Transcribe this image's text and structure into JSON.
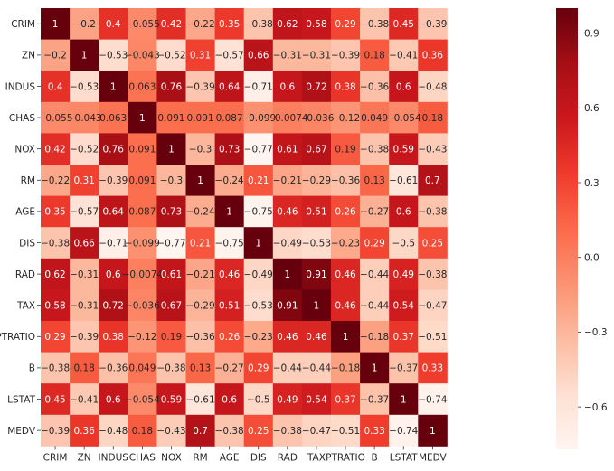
{
  "chart_data": {
    "type": "heatmap",
    "title": "",
    "xlabel": "",
    "ylabel": "",
    "labels": [
      "CRIM",
      "ZN",
      "INDUS",
      "CHAS",
      "NOX",
      "RM",
      "AGE",
      "DIS",
      "RAD",
      "TAX",
      "PTRATIO",
      "B",
      "LSTAT",
      "MEDV"
    ],
    "display_row_labels": [
      "CRIM",
      "ZN",
      "INDUS",
      "CHAS",
      "NOX",
      "RM",
      "AGE",
      "DIS",
      "RAD",
      "TAX",
      "PTRATIO",
      "B",
      "LSTAT",
      "MEDV"
    ],
    "values": [
      [
        1,
        -0.2,
        0.4,
        -0.055,
        0.42,
        -0.22,
        0.35,
        -0.38,
        0.62,
        0.58,
        0.29,
        -0.38,
        0.45,
        -0.39
      ],
      [
        -0.2,
        1,
        -0.53,
        -0.043,
        -0.52,
        0.31,
        -0.57,
        0.66,
        -0.31,
        -0.31,
        -0.39,
        0.18,
        -0.41,
        0.36
      ],
      [
        0.4,
        -0.53,
        1,
        0.063,
        0.76,
        -0.39,
        0.64,
        -0.71,
        0.6,
        0.72,
        0.38,
        -0.36,
        0.6,
        -0.48
      ],
      [
        -0.055,
        -0.043,
        0.063,
        1,
        0.091,
        0.091,
        0.087,
        -0.099,
        -0.0074,
        -0.036,
        -0.12,
        0.049,
        -0.054,
        0.18
      ],
      [
        0.42,
        -0.52,
        0.76,
        0.091,
        1,
        -0.3,
        0.73,
        -0.77,
        0.61,
        0.67,
        0.19,
        -0.38,
        0.59,
        -0.43
      ],
      [
        -0.22,
        0.31,
        -0.39,
        0.091,
        -0.3,
        1,
        -0.24,
        0.21,
        -0.21,
        -0.29,
        -0.36,
        0.13,
        -0.61,
        0.7
      ],
      [
        0.35,
        -0.57,
        0.64,
        0.087,
        0.73,
        -0.24,
        1,
        -0.75,
        0.46,
        0.51,
        0.26,
        -0.27,
        0.6,
        -0.38
      ],
      [
        -0.38,
        0.66,
        -0.71,
        -0.099,
        -0.77,
        0.21,
        -0.75,
        1,
        -0.49,
        -0.53,
        -0.23,
        0.29,
        -0.5,
        0.25
      ],
      [
        0.62,
        -0.31,
        0.6,
        -0.0074,
        0.61,
        -0.21,
        0.46,
        -0.49,
        1,
        0.91,
        0.46,
        -0.44,
        0.49,
        -0.38
      ],
      [
        0.58,
        -0.31,
        0.72,
        -0.036,
        0.67,
        -0.29,
        0.51,
        -0.53,
        0.91,
        1,
        0.46,
        -0.44,
        0.54,
        -0.47
      ],
      [
        0.29,
        -0.39,
        0.38,
        -0.12,
        0.19,
        -0.36,
        0.26,
        -0.23,
        0.46,
        0.46,
        1,
        -0.18,
        0.37,
        -0.51
      ],
      [
        -0.38,
        0.18,
        -0.36,
        0.049,
        -0.38,
        0.13,
        -0.27,
        0.29,
        -0.44,
        -0.44,
        -0.18,
        1,
        -0.37,
        0.33
      ],
      [
        0.45,
        -0.41,
        0.6,
        -0.054,
        0.59,
        -0.61,
        0.6,
        -0.5,
        0.49,
        0.54,
        0.37,
        -0.37,
        1,
        -0.74
      ],
      [
        -0.39,
        0.36,
        -0.48,
        0.18,
        -0.43,
        0.7,
        -0.38,
        0.25,
        -0.38,
        -0.47,
        -0.51,
        0.33,
        -0.74,
        1
      ]
    ],
    "colormap": "Reds",
    "vmin": -0.77,
    "vmax": 1,
    "colorbar_ticks": [
      0.9,
      0.6,
      0.3,
      0.0,
      -0.3,
      -0.6
    ],
    "colorbar_tick_labels": [
      "0.9",
      "0.6",
      "0.3",
      "0.0",
      "−0.3",
      "−0.6"
    ],
    "grid": false,
    "legend": "colorbar-right"
  }
}
